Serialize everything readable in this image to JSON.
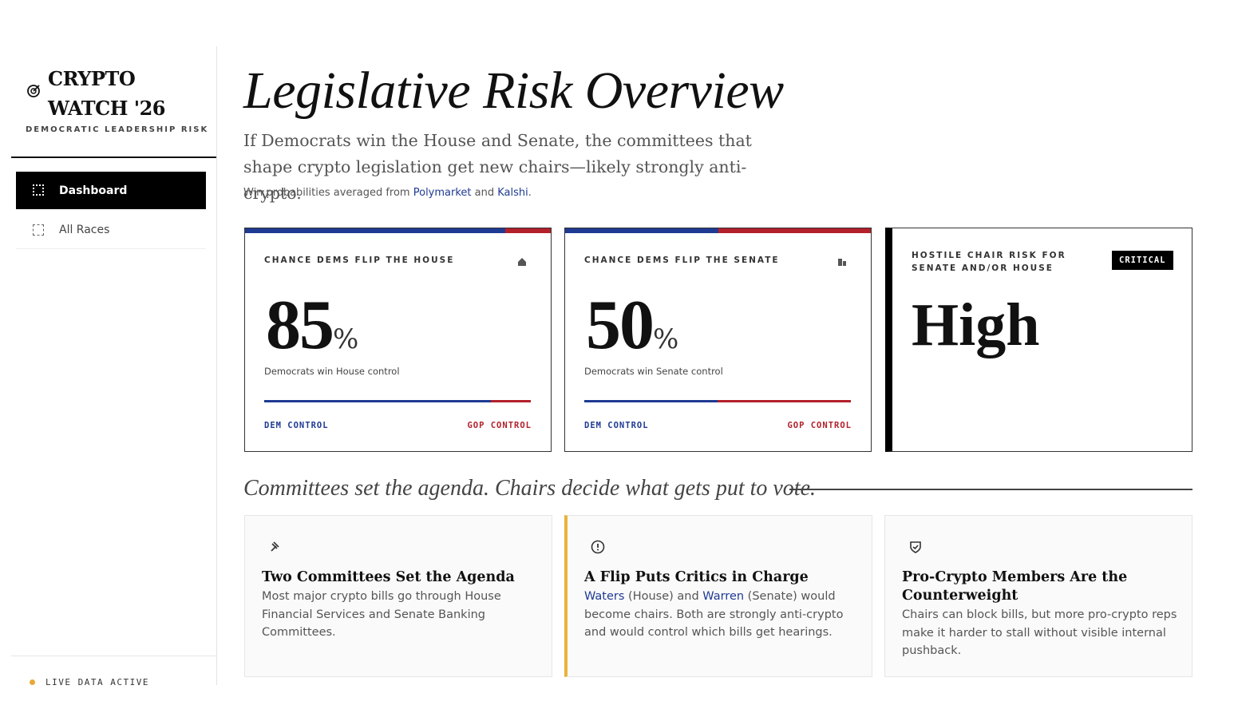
{
  "sidebar": {
    "brand": {
      "line1": "CRYPTO",
      "line2": "WATCH '26",
      "tagline": "DEMOCRATIC LEADERSHIP RISK"
    },
    "nav": [
      {
        "label": "Dashboard",
        "active": true
      },
      {
        "label": "All Races",
        "active": false
      }
    ],
    "status": "LIVE DATA ACTIVE"
  },
  "header": {
    "title": "Legislative Risk Overview",
    "subtitle": "If Democrats win the House and Senate, the committees that shape crypto legislation get new chairs—likely strongly anti-crypto.",
    "source": [
      {
        "text": "Win probabilities averaged from ",
        "link": false
      },
      {
        "text": "Polymarket",
        "link": true
      },
      {
        "text": " and ",
        "link": false
      },
      {
        "text": "Kalshi",
        "link": true
      },
      {
        "text": ".",
        "link": false
      }
    ]
  },
  "cards": [
    {
      "label": "CHANCE DEMS FLIP THE HOUSE",
      "value": 85,
      "unit": "%",
      "xlim": [
        0,
        100
      ],
      "caption": "Democrats win House control",
      "left": "DEM CONTROL",
      "right": "GOP CONTROL"
    },
    {
      "label": "CHANCE DEMS FLIP THE SENATE",
      "value": 50,
      "unit": "%",
      "xlim": [
        0,
        100
      ],
      "caption": "Democrats win Senate control",
      "left": "DEM CONTROL",
      "right": "GOP CONTROL"
    }
  ],
  "risk": {
    "label": "HOSTILE CHAIR RISK FOR SENATE AND/OR HOUSE",
    "badge": "CRITICAL",
    "value": "High"
  },
  "section": {
    "heading": "Committees set the agenda. Chairs decide what gets put to vote."
  },
  "features": [
    {
      "title": "Two Committees Set the Agenda",
      "body": [
        {
          "text": "Most major crypto bills go through House Financial Services and Senate Banking Committees.",
          "link": false
        }
      ]
    },
    {
      "title": "A Flip Puts Critics in Charge",
      "body": [
        {
          "text": "Waters",
          "link": true
        },
        {
          "text": " (House) and ",
          "link": false
        },
        {
          "text": "Warren",
          "link": true
        },
        {
          "text": " (Senate) would become chairs. Both are strongly anti-crypto and would control which bills get hearings.",
          "link": false
        }
      ]
    },
    {
      "title": "Pro-Crypto Members Are the Counterweight",
      "body": [
        {
          "text": "Chairs can block bills, but more pro-crypto reps make it harder to stall without visible internal pushback.",
          "link": false
        }
      ]
    }
  ]
}
